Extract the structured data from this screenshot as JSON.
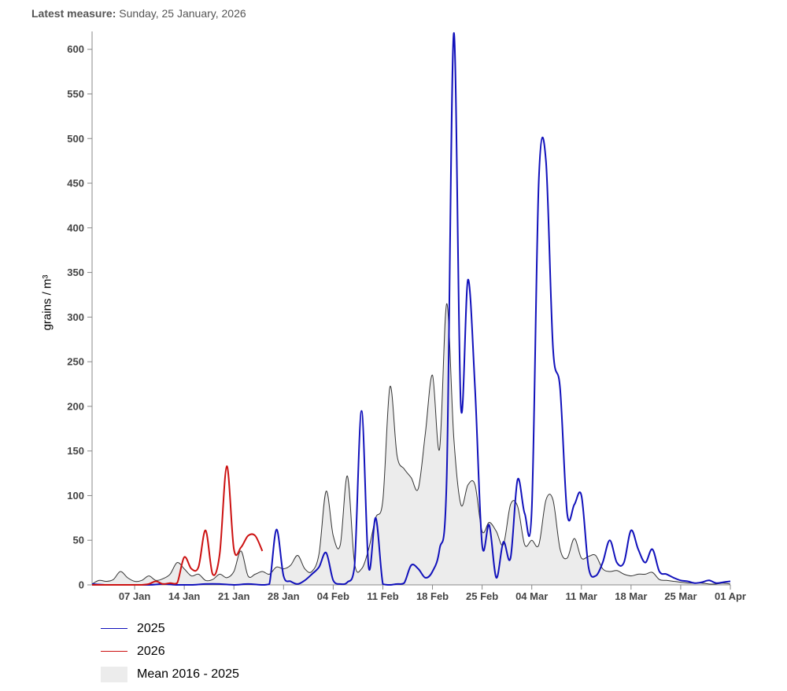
{
  "header": {
    "latest_label": "Latest measure:",
    "latest_date": "Sunday, 25 January, 2026"
  },
  "chart_data": {
    "type": "line",
    "ylabel": "grains / m³",
    "ylim": [
      0,
      620
    ],
    "yticks": [
      0,
      50,
      100,
      150,
      200,
      250,
      300,
      350,
      400,
      450,
      500,
      550,
      600
    ],
    "xlim": [
      0,
      90
    ],
    "xticks": [
      {
        "day": 6,
        "label": "07 Jan"
      },
      {
        "day": 13,
        "label": "14 Jan"
      },
      {
        "day": 20,
        "label": "21 Jan"
      },
      {
        "day": 27,
        "label": "28 Jan"
      },
      {
        "day": 34,
        "label": "04 Feb"
      },
      {
        "day": 41,
        "label": "11 Feb"
      },
      {
        "day": 48,
        "label": "18 Feb"
      },
      {
        "day": 55,
        "label": "25 Feb"
      },
      {
        "day": 62,
        "label": "04 Mar"
      },
      {
        "day": 69,
        "label": "11 Mar"
      },
      {
        "day": 76,
        "label": "18 Mar"
      },
      {
        "day": 83,
        "label": "25 Mar"
      },
      {
        "day": 90,
        "label": "01 Apr"
      }
    ],
    "series": [
      {
        "name": "2025",
        "color": "#1111bb",
        "points": [
          [
            0,
            1
          ],
          [
            2,
            0
          ],
          [
            4,
            0
          ],
          [
            8,
            0
          ],
          [
            10,
            1
          ],
          [
            12,
            0
          ],
          [
            14,
            0
          ],
          [
            16,
            1
          ],
          [
            18,
            1
          ],
          [
            20,
            0
          ],
          [
            22,
            1
          ],
          [
            24,
            0
          ],
          [
            25,
            1
          ],
          [
            26,
            62
          ],
          [
            27,
            10
          ],
          [
            28,
            4
          ],
          [
            29,
            1
          ],
          [
            30,
            5
          ],
          [
            31,
            12
          ],
          [
            32,
            20
          ],
          [
            33,
            36
          ],
          [
            34,
            5
          ],
          [
            35,
            1
          ],
          [
            36,
            3
          ],
          [
            37,
            20
          ],
          [
            38,
            195
          ],
          [
            39,
            20
          ],
          [
            40,
            75
          ],
          [
            41,
            1
          ],
          [
            42,
            0
          ],
          [
            43,
            1
          ],
          [
            44,
            2
          ],
          [
            45,
            22
          ],
          [
            46,
            18
          ],
          [
            47,
            8
          ],
          [
            48,
            15
          ],
          [
            49,
            40
          ],
          [
            50,
            120
          ],
          [
            51,
            618
          ],
          [
            52,
            200
          ],
          [
            53,
            342
          ],
          [
            54,
            220
          ],
          [
            55,
            45
          ],
          [
            56,
            67
          ],
          [
            57,
            8
          ],
          [
            58,
            48
          ],
          [
            59,
            30
          ],
          [
            60,
            118
          ],
          [
            61,
            80
          ],
          [
            62,
            85
          ],
          [
            63,
            455
          ],
          [
            64,
            475
          ],
          [
            65,
            265
          ],
          [
            66,
            220
          ],
          [
            67,
            80
          ],
          [
            68,
            90
          ],
          [
            69,
            100
          ],
          [
            70,
            20
          ],
          [
            71,
            10
          ],
          [
            72,
            25
          ],
          [
            73,
            50
          ],
          [
            74,
            25
          ],
          [
            75,
            25
          ],
          [
            76,
            61
          ],
          [
            77,
            40
          ],
          [
            78,
            25
          ],
          [
            79,
            40
          ],
          [
            80,
            15
          ],
          [
            81,
            12
          ],
          [
            82,
            8
          ],
          [
            83,
            5
          ],
          [
            84,
            4
          ],
          [
            85,
            2
          ],
          [
            86,
            3
          ],
          [
            87,
            5
          ],
          [
            88,
            2
          ],
          [
            89,
            3
          ],
          [
            90,
            4
          ]
        ]
      },
      {
        "name": "2026",
        "color": "#cc1111",
        "points": [
          [
            0,
            0
          ],
          [
            1,
            0
          ],
          [
            2,
            0
          ],
          [
            3,
            0
          ],
          [
            4,
            0
          ],
          [
            5,
            0
          ],
          [
            6,
            0
          ],
          [
            7,
            0
          ],
          [
            8,
            1
          ],
          [
            9,
            4
          ],
          [
            10,
            1
          ],
          [
            11,
            2
          ],
          [
            12,
            2
          ],
          [
            13,
            31
          ],
          [
            14,
            18
          ],
          [
            15,
            20
          ],
          [
            16,
            61
          ],
          [
            17,
            12
          ],
          [
            18,
            35
          ],
          [
            19,
            133
          ],
          [
            20,
            40
          ],
          [
            21,
            42
          ],
          [
            22,
            55
          ],
          [
            23,
            55
          ],
          [
            24,
            38
          ]
        ]
      },
      {
        "name": "Mean 2016 - 2025",
        "color": "#ececec",
        "points": [
          [
            0,
            1
          ],
          [
            1,
            5
          ],
          [
            2,
            4
          ],
          [
            3,
            6
          ],
          [
            4,
            15
          ],
          [
            5,
            8
          ],
          [
            6,
            4
          ],
          [
            7,
            5
          ],
          [
            8,
            10
          ],
          [
            9,
            5
          ],
          [
            10,
            7
          ],
          [
            11,
            12
          ],
          [
            12,
            25
          ],
          [
            13,
            18
          ],
          [
            14,
            10
          ],
          [
            15,
            12
          ],
          [
            16,
            5
          ],
          [
            17,
            6
          ],
          [
            18,
            12
          ],
          [
            19,
            8
          ],
          [
            20,
            15
          ],
          [
            21,
            38
          ],
          [
            22,
            10
          ],
          [
            23,
            12
          ],
          [
            24,
            15
          ],
          [
            25,
            12
          ],
          [
            26,
            20
          ],
          [
            27,
            18
          ],
          [
            28,
            22
          ],
          [
            29,
            33
          ],
          [
            30,
            18
          ],
          [
            31,
            15
          ],
          [
            32,
            35
          ],
          [
            33,
            105
          ],
          [
            34,
            55
          ],
          [
            35,
            45
          ],
          [
            36,
            122
          ],
          [
            37,
            25
          ],
          [
            38,
            18
          ],
          [
            39,
            40
          ],
          [
            40,
            75
          ],
          [
            41,
            95
          ],
          [
            42,
            222
          ],
          [
            43,
            145
          ],
          [
            44,
            130
          ],
          [
            45,
            120
          ],
          [
            46,
            108
          ],
          [
            47,
            170
          ],
          [
            48,
            235
          ],
          [
            49,
            152
          ],
          [
            50,
            315
          ],
          [
            51,
            165
          ],
          [
            52,
            90
          ],
          [
            53,
            112
          ],
          [
            54,
            112
          ],
          [
            55,
            60
          ],
          [
            56,
            70
          ],
          [
            57,
            60
          ],
          [
            58,
            45
          ],
          [
            59,
            90
          ],
          [
            60,
            88
          ],
          [
            61,
            45
          ],
          [
            62,
            50
          ],
          [
            63,
            45
          ],
          [
            64,
            95
          ],
          [
            65,
            95
          ],
          [
            66,
            40
          ],
          [
            67,
            30
          ],
          [
            68,
            52
          ],
          [
            69,
            30
          ],
          [
            70,
            32
          ],
          [
            71,
            33
          ],
          [
            72,
            18
          ],
          [
            73,
            15
          ],
          [
            74,
            16
          ],
          [
            75,
            12
          ],
          [
            76,
            10
          ],
          [
            77,
            12
          ],
          [
            78,
            12
          ],
          [
            79,
            14
          ],
          [
            80,
            6
          ],
          [
            81,
            5
          ],
          [
            82,
            4
          ],
          [
            83,
            3
          ],
          [
            84,
            2
          ],
          [
            85,
            2
          ],
          [
            86,
            2
          ],
          [
            87,
            1
          ],
          [
            88,
            1
          ],
          [
            89,
            2
          ],
          [
            90,
            1
          ]
        ]
      }
    ],
    "legend": {
      "items": [
        {
          "label": "2025",
          "color": "#1111bb",
          "kind": "line"
        },
        {
          "label": "2026",
          "color": "#cc1111",
          "kind": "line"
        },
        {
          "label": "Mean 2016 - 2025",
          "color": "#ececec",
          "kind": "area"
        }
      ]
    }
  }
}
